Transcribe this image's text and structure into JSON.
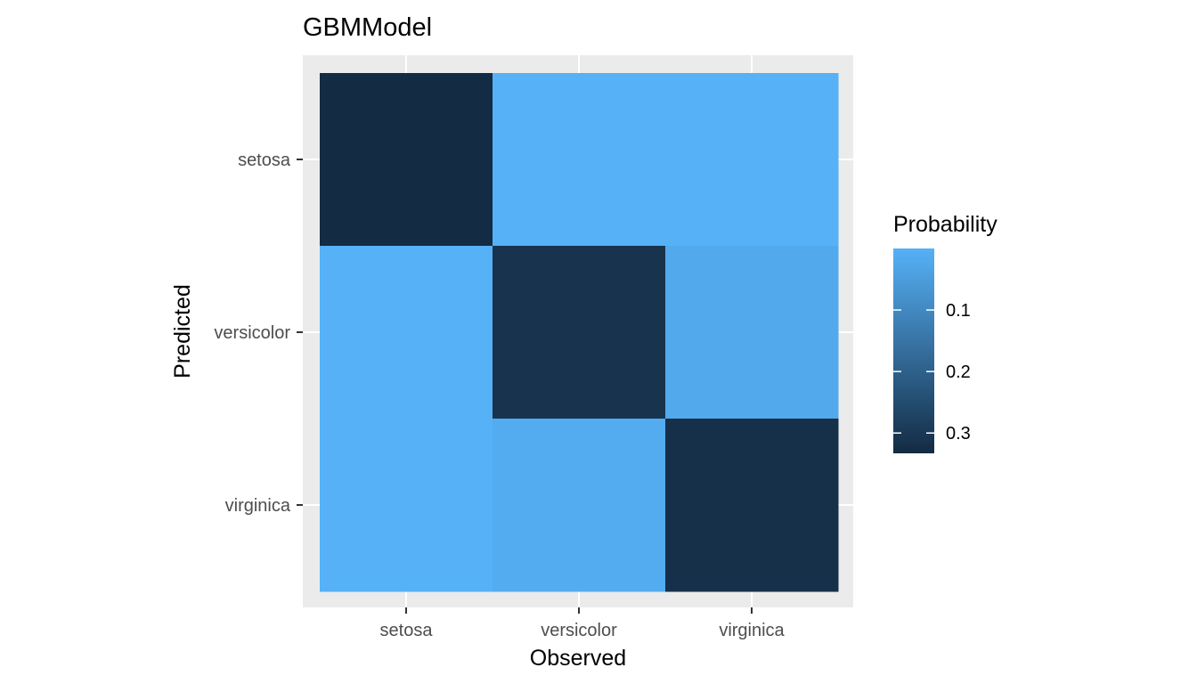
{
  "chart_data": {
    "type": "heatmap",
    "title": "GBMModel",
    "xlabel": "Observed",
    "ylabel": "Predicted",
    "x_categories": [
      "setosa",
      "versicolor",
      "virginica"
    ],
    "y_categories": [
      "setosa",
      "versicolor",
      "virginica"
    ],
    "cells": [
      {
        "x": "setosa",
        "y": "setosa",
        "value": 0.333
      },
      {
        "x": "versicolor",
        "y": "setosa",
        "value": 0.0
      },
      {
        "x": "virginica",
        "y": "setosa",
        "value": 0.0
      },
      {
        "x": "setosa",
        "y": "versicolor",
        "value": 0.0
      },
      {
        "x": "versicolor",
        "y": "versicolor",
        "value": 0.313
      },
      {
        "x": "virginica",
        "y": "versicolor",
        "value": 0.02
      },
      {
        "x": "setosa",
        "y": "virginica",
        "value": 0.0
      },
      {
        "x": "versicolor",
        "y": "virginica",
        "value": 0.013
      },
      {
        "x": "virginica",
        "y": "virginica",
        "value": 0.32
      }
    ],
    "legend": {
      "title": "Probability",
      "placement": "right",
      "ticks": [
        {
          "value": 0.1,
          "label": "0.1"
        },
        {
          "value": 0.2,
          "label": "0.2"
        },
        {
          "value": 0.3,
          "label": "0.3"
        }
      ],
      "range": [
        0,
        0.333
      ],
      "color_low": "#56B1F7",
      "color_high": "#132B43",
      "reversed": true
    },
    "panel_background": "#EBEBEB",
    "grid": true
  }
}
